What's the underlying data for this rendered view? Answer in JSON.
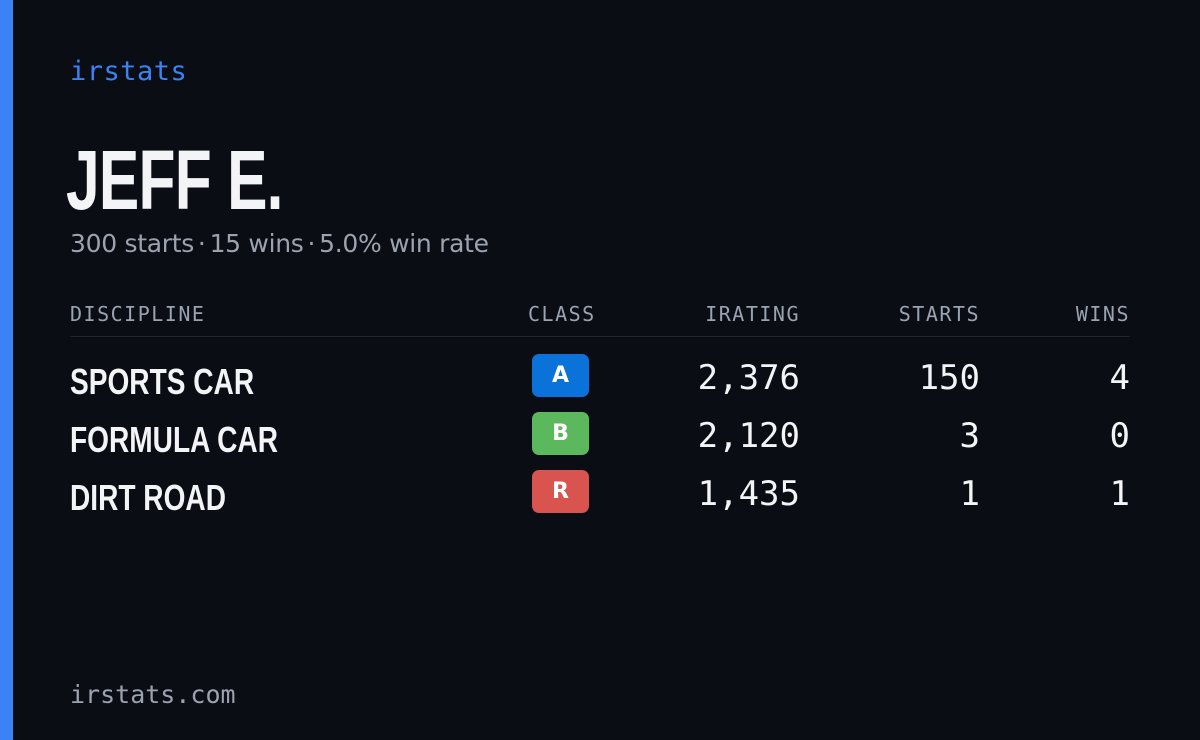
{
  "brand": "irstats",
  "driver": {
    "name": "JEFF E.",
    "starts_text": "300 starts",
    "wins_text": "15 wins",
    "win_rate_text": "5.0% win rate",
    "separator": "·"
  },
  "table": {
    "headers": {
      "discipline": "DISCIPLINE",
      "class": "CLASS",
      "irating": "IRATING",
      "starts": "STARTS",
      "wins": "WINS"
    },
    "rows": [
      {
        "discipline": "SPORTS CAR",
        "class": "A",
        "class_color": "#0b72d9",
        "irating": "2,376",
        "starts": "150",
        "wins": "4"
      },
      {
        "discipline": "FORMULA CAR",
        "class": "B",
        "class_color": "#5cb85c",
        "irating": "2,120",
        "starts": "3",
        "wins": "0"
      },
      {
        "discipline": "DIRT ROAD",
        "class": "R",
        "class_color": "#d9534f",
        "irating": "1,435",
        "starts": "1",
        "wins": "1"
      }
    ]
  },
  "footer": "irstats.com",
  "colors": {
    "accent": "#3b82f6",
    "background": "#0a0d14"
  }
}
